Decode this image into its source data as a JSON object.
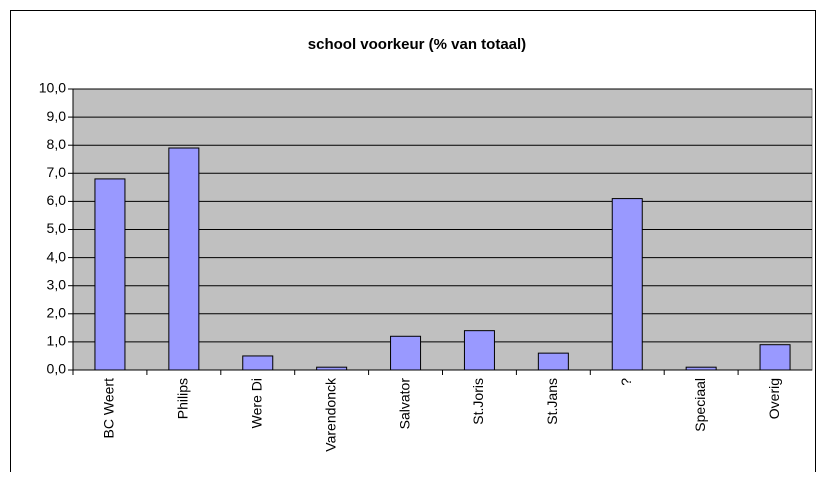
{
  "chart_data": {
    "type": "bar",
    "title": "school voorkeur (% van totaal)",
    "categories": [
      "BC Weert",
      "Philips",
      "Were Di",
      "Varendonck",
      "Salvator",
      "St.Joris",
      "St.Jans",
      "?",
      "Speciaal",
      "Overig"
    ],
    "values": [
      6.8,
      7.9,
      0.5,
      0.1,
      1.2,
      1.4,
      0.6,
      6.1,
      0.1,
      0.9
    ],
    "color": "#9999ff",
    "ylim": [
      0,
      10
    ],
    "yticks": [
      {
        "value": 0,
        "label": "0,0"
      },
      {
        "value": 1,
        "label": "1,0"
      },
      {
        "value": 2,
        "label": "2,0"
      },
      {
        "value": 3,
        "label": "3,0"
      },
      {
        "value": 4,
        "label": "4,0"
      },
      {
        "value": 5,
        "label": "5,0"
      },
      {
        "value": 6,
        "label": "6,0"
      },
      {
        "value": 7,
        "label": "7,0"
      },
      {
        "value": 8,
        "label": "8,0"
      },
      {
        "value": 9,
        "label": "9,0"
      },
      {
        "value": 10,
        "label": "10,0"
      }
    ],
    "grid": true
  }
}
